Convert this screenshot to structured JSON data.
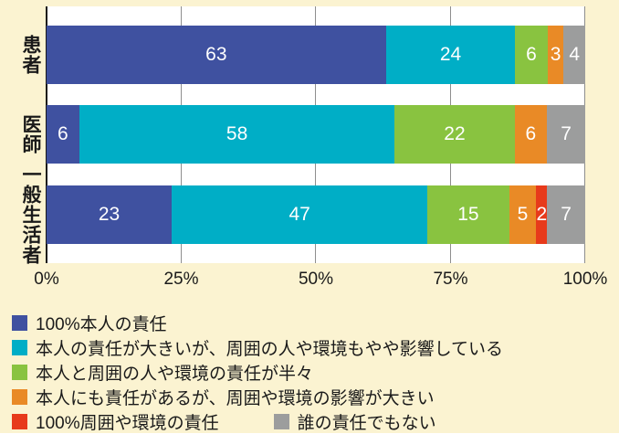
{
  "background_color": "#FBF3D1",
  "plot_background_color": "#FFFFFF",
  "chart_data": {
    "type": "bar",
    "orientation": "horizontal-stacked",
    "title": "",
    "xlabel": "",
    "ylabel": "",
    "xlim": [
      0,
      100
    ],
    "x_ticks": [
      {
        "value": 0,
        "label": "0%"
      },
      {
        "value": 25,
        "label": "25%"
      },
      {
        "value": 50,
        "label": "50%"
      },
      {
        "value": 75,
        "label": "75%"
      },
      {
        "value": 100,
        "label": "100%"
      }
    ],
    "grid": true,
    "gridline_values": [
      25,
      50,
      75,
      100
    ],
    "categories": [
      "患者",
      "医師",
      "一般生活者"
    ],
    "series": [
      {
        "name": "100%本人の責任",
        "color": "#3F51A0",
        "values": [
          63,
          6,
          23
        ]
      },
      {
        "name": "本人の責任が大きいが、周囲の人や環境もやや影響している",
        "color": "#00AEC6",
        "values": [
          24,
          58,
          47
        ]
      },
      {
        "name": "本人と周囲の人や環境の責任が半々",
        "color": "#89C340",
        "values": [
          6,
          22,
          15
        ]
      },
      {
        "name": "本人にも責任があるが、周囲や環境の影響が大きい",
        "color": "#E98A26",
        "values": [
          3,
          6,
          5
        ]
      },
      {
        "name": "100%周囲や環境の責任",
        "color": "#E73A1B",
        "values": [
          0,
          0,
          2
        ]
      },
      {
        "name": "誰の責任でもない",
        "color": "#9C9D9D",
        "values": [
          4,
          7,
          7
        ]
      }
    ],
    "legend_position": "bottom",
    "legend_rows": [
      [
        0
      ],
      [
        1
      ],
      [
        2
      ],
      [
        3
      ],
      [
        4,
        5
      ]
    ]
  }
}
